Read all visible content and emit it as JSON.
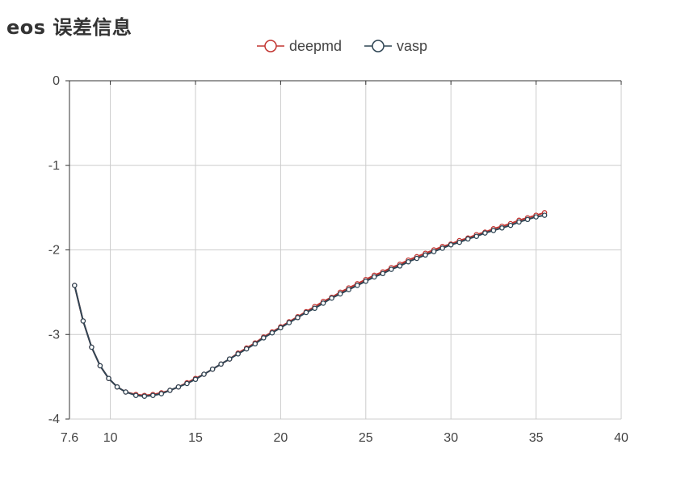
{
  "chart_data": {
    "type": "line",
    "title": "eos 误差信息",
    "xlabel": "",
    "ylabel": "",
    "xlim": [
      7.6,
      40
    ],
    "ylim": [
      -4,
      0
    ],
    "x_ticks": [
      "7.6",
      "10",
      "15",
      "20",
      "25",
      "30",
      "35",
      "40"
    ],
    "x_tick_values": [
      7.6,
      10,
      15,
      20,
      25,
      30,
      35,
      40
    ],
    "y_ticks": [
      "0",
      "-1",
      "-2",
      "-3",
      "-4"
    ],
    "y_tick_values": [
      0,
      -1,
      -2,
      -3,
      -4
    ],
    "grid": true,
    "legend_position": "top-center",
    "series": [
      {
        "name": "deepmd",
        "color": "#c23531",
        "points": [
          [
            7.9,
            -2.42
          ],
          [
            8.4,
            -2.84
          ],
          [
            8.9,
            -3.15
          ],
          [
            9.4,
            -3.37
          ],
          [
            9.9,
            -3.52
          ],
          [
            10.4,
            -3.62
          ],
          [
            10.9,
            -3.68
          ],
          [
            11.5,
            -3.71
          ],
          [
            12.0,
            -3.72
          ],
          [
            12.5,
            -3.71
          ],
          [
            13.0,
            -3.69
          ],
          [
            13.5,
            -3.66
          ],
          [
            14.0,
            -3.62
          ],
          [
            14.5,
            -3.57
          ],
          [
            15.0,
            -3.52
          ],
          [
            15.5,
            -3.47
          ],
          [
            16.0,
            -3.41
          ],
          [
            16.5,
            -3.35
          ],
          [
            17.0,
            -3.29
          ],
          [
            17.5,
            -3.22
          ],
          [
            18.0,
            -3.16
          ],
          [
            18.5,
            -3.1
          ],
          [
            19.0,
            -3.03
          ],
          [
            19.5,
            -2.97
          ],
          [
            20.0,
            -2.91
          ],
          [
            20.5,
            -2.85
          ],
          [
            21.0,
            -2.79
          ],
          [
            21.5,
            -2.73
          ],
          [
            22.0,
            -2.67
          ],
          [
            22.5,
            -2.61
          ],
          [
            23.0,
            -2.56
          ],
          [
            23.5,
            -2.5
          ],
          [
            24.0,
            -2.45
          ],
          [
            24.5,
            -2.4
          ],
          [
            25.0,
            -2.35
          ],
          [
            25.5,
            -2.3
          ],
          [
            26.0,
            -2.26
          ],
          [
            26.5,
            -2.21
          ],
          [
            27.0,
            -2.17
          ],
          [
            27.5,
            -2.12
          ],
          [
            28.0,
            -2.08
          ],
          [
            28.5,
            -2.04
          ],
          [
            29.0,
            -2.0
          ],
          [
            29.5,
            -1.96
          ],
          [
            30.0,
            -1.93
          ],
          [
            30.5,
            -1.89
          ],
          [
            31.0,
            -1.86
          ],
          [
            31.5,
            -1.82
          ],
          [
            32.0,
            -1.79
          ],
          [
            32.5,
            -1.75
          ],
          [
            33.0,
            -1.72
          ],
          [
            33.5,
            -1.69
          ],
          [
            34.0,
            -1.65
          ],
          [
            34.5,
            -1.62
          ],
          [
            35.0,
            -1.59
          ],
          [
            35.5,
            -1.56
          ]
        ]
      },
      {
        "name": "vasp",
        "color": "#2f4554",
        "points": [
          [
            7.9,
            -2.42
          ],
          [
            8.4,
            -2.84
          ],
          [
            8.9,
            -3.15
          ],
          [
            9.4,
            -3.37
          ],
          [
            9.9,
            -3.52
          ],
          [
            10.4,
            -3.62
          ],
          [
            10.9,
            -3.68
          ],
          [
            11.5,
            -3.72
          ],
          [
            12.0,
            -3.73
          ],
          [
            12.5,
            -3.72
          ],
          [
            13.0,
            -3.7
          ],
          [
            13.5,
            -3.66
          ],
          [
            14.0,
            -3.62
          ],
          [
            14.5,
            -3.58
          ],
          [
            15.0,
            -3.53
          ],
          [
            15.5,
            -3.47
          ],
          [
            16.0,
            -3.41
          ],
          [
            16.5,
            -3.35
          ],
          [
            17.0,
            -3.29
          ],
          [
            17.5,
            -3.23
          ],
          [
            18.0,
            -3.17
          ],
          [
            18.5,
            -3.11
          ],
          [
            19.0,
            -3.04
          ],
          [
            19.5,
            -2.98
          ],
          [
            20.0,
            -2.92
          ],
          [
            20.5,
            -2.86
          ],
          [
            21.0,
            -2.8
          ],
          [
            21.5,
            -2.74
          ],
          [
            22.0,
            -2.69
          ],
          [
            22.5,
            -2.63
          ],
          [
            23.0,
            -2.57
          ],
          [
            23.5,
            -2.52
          ],
          [
            24.0,
            -2.47
          ],
          [
            24.5,
            -2.42
          ],
          [
            25.0,
            -2.37
          ],
          [
            25.5,
            -2.32
          ],
          [
            26.0,
            -2.28
          ],
          [
            26.5,
            -2.23
          ],
          [
            27.0,
            -2.19
          ],
          [
            27.5,
            -2.14
          ],
          [
            28.0,
            -2.1
          ],
          [
            28.5,
            -2.06
          ],
          [
            29.0,
            -2.02
          ],
          [
            29.5,
            -1.98
          ],
          [
            30.0,
            -1.94
          ],
          [
            30.5,
            -1.91
          ],
          [
            31.0,
            -1.87
          ],
          [
            31.5,
            -1.84
          ],
          [
            32.0,
            -1.8
          ],
          [
            32.5,
            -1.77
          ],
          [
            33.0,
            -1.74
          ],
          [
            33.5,
            -1.71
          ],
          [
            34.0,
            -1.67
          ],
          [
            34.5,
            -1.64
          ],
          [
            35.0,
            -1.61
          ],
          [
            35.5,
            -1.59
          ]
        ]
      }
    ]
  }
}
